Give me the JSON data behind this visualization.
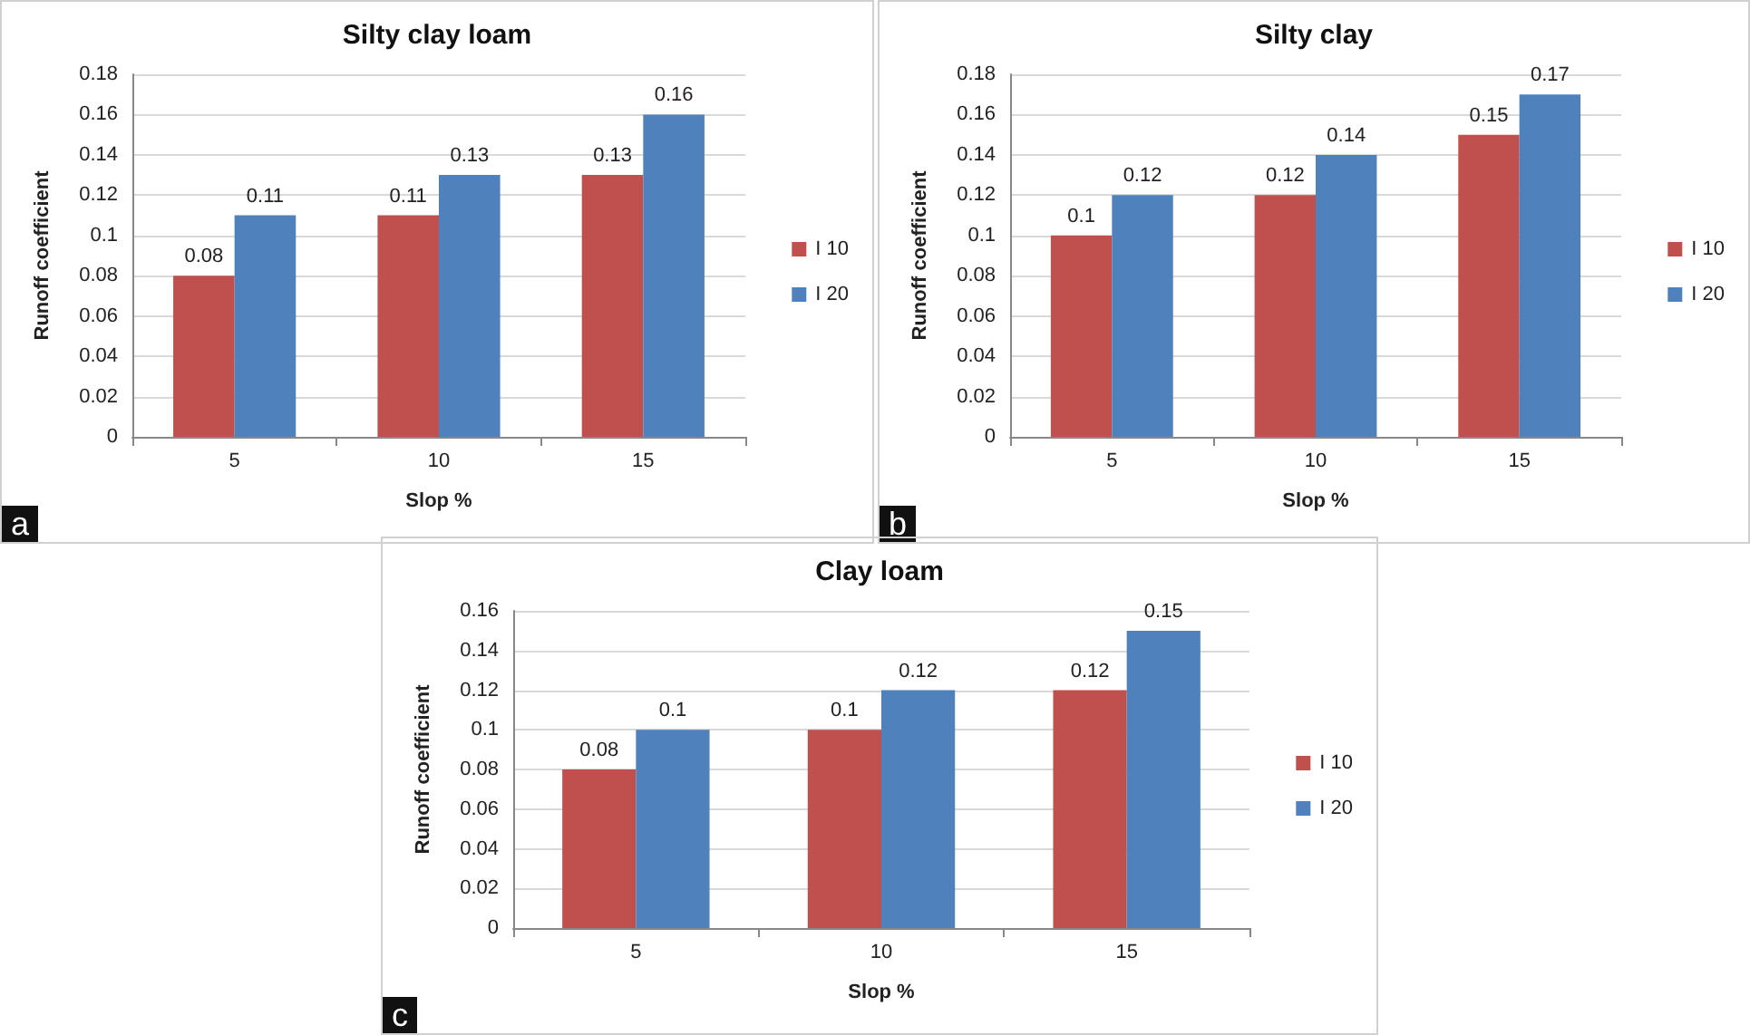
{
  "chart_data": [
    {
      "type": "bar",
      "title": "Silty clay loam",
      "xlabel": "Slop %",
      "ylabel": "Runoff coefficient",
      "categories": [
        "5",
        "10",
        "15"
      ],
      "series": [
        {
          "name": "I 10",
          "color": "#c0504d",
          "values": [
            0.08,
            0.11,
            0.13
          ]
        },
        {
          "name": "I 20",
          "color": "#4f81bd",
          "values": [
            0.11,
            0.13,
            0.16
          ]
        }
      ],
      "ylim": [
        0,
        0.18
      ],
      "yticks": [
        0,
        0.02,
        0.04,
        0.06,
        0.08,
        0.1,
        0.12,
        0.14,
        0.16,
        0.18
      ],
      "grid": "y",
      "legend": "right",
      "data_labels": true,
      "annotations": [
        "a"
      ]
    },
    {
      "type": "bar",
      "title": "Silty clay",
      "xlabel": "Slop %",
      "ylabel": "Runoff coefficient",
      "categories": [
        "5",
        "10",
        "15"
      ],
      "series": [
        {
          "name": "I 10",
          "color": "#c0504d",
          "values": [
            0.1,
            0.12,
            0.15
          ]
        },
        {
          "name": "I 20",
          "color": "#4f81bd",
          "values": [
            0.12,
            0.14,
            0.17
          ]
        }
      ],
      "ylim": [
        0,
        0.18
      ],
      "yticks": [
        0,
        0.02,
        0.04,
        0.06,
        0.08,
        0.1,
        0.12,
        0.14,
        0.16,
        0.18
      ],
      "grid": "y",
      "legend": "right",
      "data_labels": true,
      "annotations": [
        "b"
      ]
    },
    {
      "type": "bar",
      "title": "Clay loam",
      "xlabel": "Slop %",
      "ylabel": "Runoff coefficient",
      "categories": [
        "5",
        "10",
        "15"
      ],
      "series": [
        {
          "name": "I 10",
          "color": "#c0504d",
          "values": [
            0.08,
            0.1,
            0.12
          ]
        },
        {
          "name": "I 20",
          "color": "#4f81bd",
          "values": [
            0.1,
            0.12,
            0.15
          ]
        }
      ],
      "ylim": [
        0,
        0.16
      ],
      "yticks": [
        0,
        0.02,
        0.04,
        0.06,
        0.08,
        0.1,
        0.12,
        0.14,
        0.16
      ],
      "grid": "y",
      "legend": "right",
      "data_labels": true,
      "annotations": [
        "c"
      ]
    }
  ]
}
